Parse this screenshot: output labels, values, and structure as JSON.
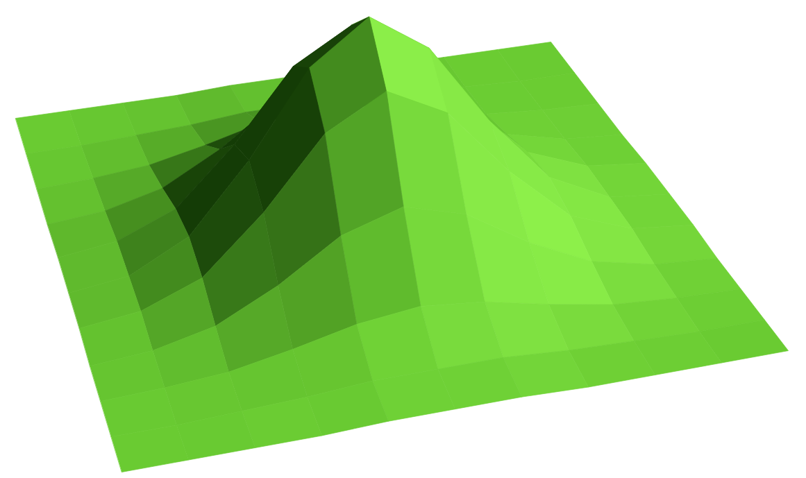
{
  "chart_data": {
    "type": "surface",
    "color": "#6acb32",
    "tick_labels": false,
    "x": [
      0,
      1,
      2,
      3,
      4,
      5,
      6,
      7,
      8,
      9,
      10
    ],
    "y": [
      0,
      1,
      2,
      3,
      4,
      5,
      6,
      7,
      8,
      9,
      10
    ],
    "xlim": [
      0,
      10
    ],
    "ylim": [
      0,
      10
    ],
    "zlim": [
      0,
      1
    ],
    "z": [
      [
        0,
        0,
        0,
        0,
        0.01,
        0.01,
        0.01,
        0,
        0,
        0,
        0
      ],
      [
        0,
        0,
        0.01,
        0.02,
        0.04,
        0.04,
        0.04,
        0.02,
        0.01,
        0,
        0
      ],
      [
        0,
        0.01,
        0.03,
        0.08,
        0.14,
        0.17,
        0.14,
        0.08,
        0.03,
        0.01,
        0
      ],
      [
        0,
        0.02,
        0.08,
        0.21,
        0.38,
        0.46,
        0.38,
        0.21,
        0.08,
        0.02,
        0
      ],
      [
        0.01,
        0.04,
        0.14,
        0.38,
        0.68,
        0.82,
        0.68,
        0.38,
        0.14,
        0.04,
        0.01
      ],
      [
        0.01,
        0.04,
        0.17,
        0.46,
        0.82,
        1,
        0.82,
        0.46,
        0.17,
        0.04,
        0.01
      ],
      [
        0.01,
        0.04,
        0.14,
        0.38,
        0.68,
        0.82,
        0.68,
        0.38,
        0.14,
        0.04,
        0.01
      ],
      [
        0,
        0.02,
        0.08,
        0.21,
        0.38,
        0.46,
        0.38,
        0.21,
        0.08,
        0.02,
        0
      ],
      [
        0,
        0.01,
        0.03,
        0.08,
        0.14,
        0.17,
        0.14,
        0.08,
        0.03,
        0.01,
        0
      ],
      [
        0,
        0,
        0.01,
        0.02,
        0.04,
        0.04,
        0.04,
        0.02,
        0.01,
        0,
        0
      ],
      [
        0,
        0,
        0,
        0,
        0.01,
        0.01,
        0.01,
        0,
        0,
        0,
        0
      ]
    ]
  }
}
